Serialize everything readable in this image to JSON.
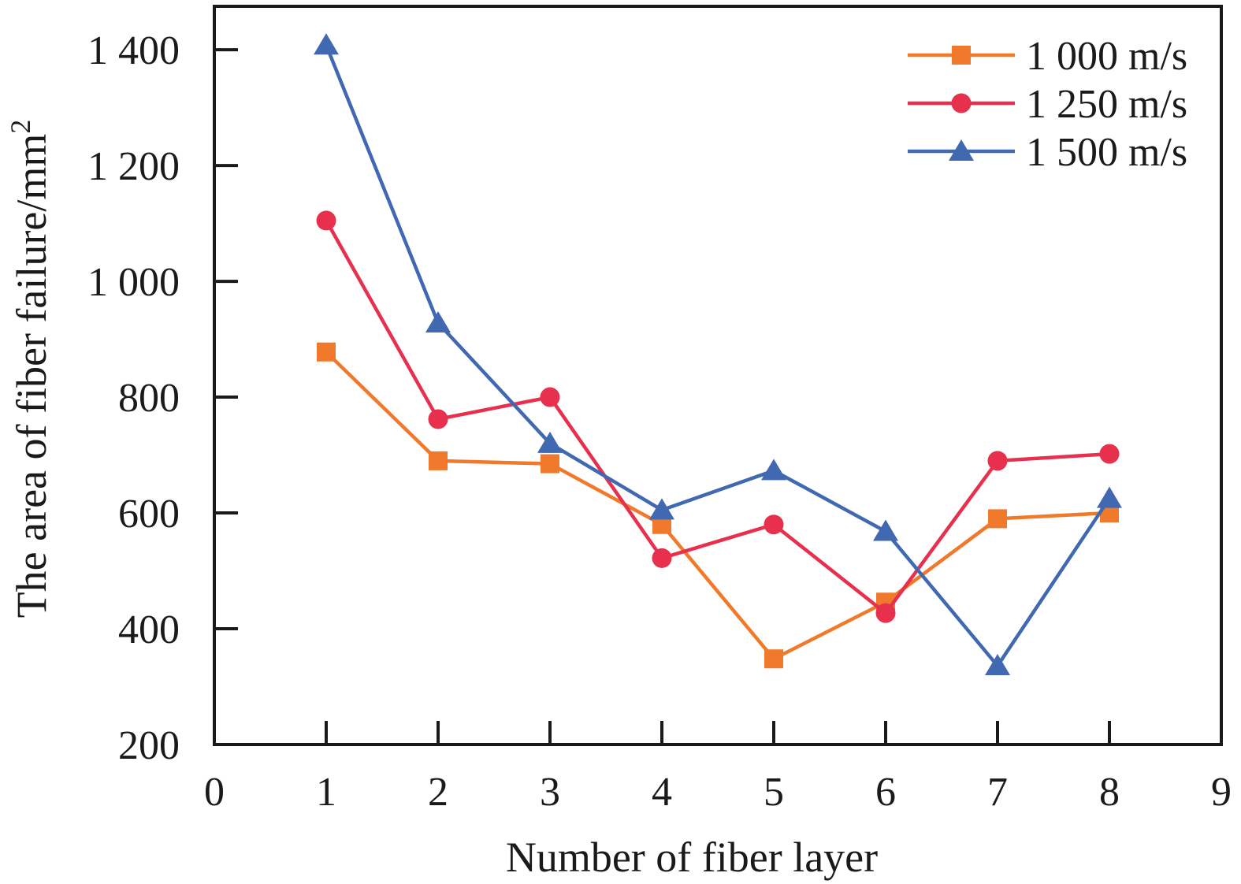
{
  "chart_data": {
    "type": "line",
    "title": "",
    "xlabel": "Number of fiber layer",
    "ylabel": "The area of fiber failure/mm²",
    "ylabel_main": "The area of fiber failure/mm",
    "ylabel_sup": "2",
    "x": [
      1,
      2,
      3,
      4,
      5,
      6,
      7,
      8
    ],
    "series": [
      {
        "name": "1 000 m/s",
        "color": "#F0792B",
        "marker": "square",
        "values": [
          878,
          690,
          685,
          580,
          348,
          446,
          590,
          600
        ]
      },
      {
        "name": "1 250 m/s",
        "color": "#E6304E",
        "marker": "circle",
        "values": [
          1105,
          762,
          800,
          522,
          580,
          427,
          690,
          702
        ]
      },
      {
        "name": "1 500 m/s",
        "color": "#4069B1",
        "marker": "triangle",
        "values": [
          1408,
          928,
          720,
          605,
          673,
          568,
          336,
          625
        ]
      }
    ],
    "xlim": [
      0,
      9
    ],
    "ylim": [
      200,
      1475
    ],
    "xticks": {
      "values": [
        0,
        1,
        2,
        3,
        4,
        5,
        6,
        7,
        8,
        9
      ],
      "labels": [
        "0",
        "1",
        "2",
        "3",
        "4",
        "5",
        "6",
        "7",
        "8",
        "9"
      ]
    },
    "yticks": {
      "values": [
        200,
        400,
        600,
        800,
        1000,
        1200,
        1400
      ],
      "labels": [
        "200",
        "400",
        "600",
        "800",
        "1 000",
        "1 200",
        "1 400"
      ]
    },
    "grid": false,
    "legend_position": "top-right-inside",
    "axis_color": "#1a1a1a"
  }
}
